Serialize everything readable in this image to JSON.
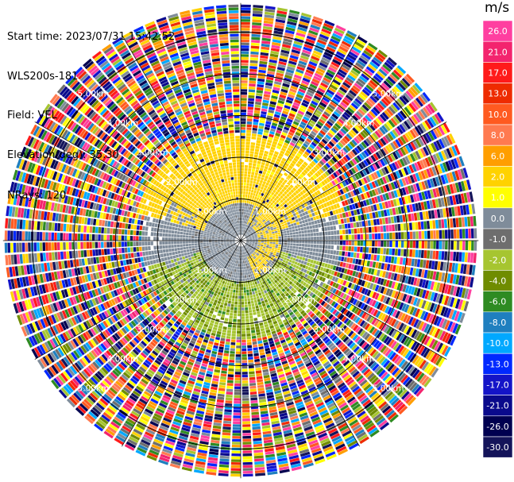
{
  "header": {
    "start_time": "Start time: 2023/07/31 15:42:52",
    "instrument": "WLS200s-181",
    "field": "Field: VEL",
    "elevation": "Elevation(deg): 35.30",
    "nrays": "NRays: 120"
  },
  "colorbar": {
    "unit": "m/s",
    "ticks": [
      "26.0",
      "21.0",
      "17.0",
      "13.0",
      "10.0",
      "8.0",
      "6.0",
      "2.0",
      "1.0",
      "0.0",
      "-1.0",
      "-2.0",
      "-4.0",
      "-6.0",
      "-8.0",
      "-10.0",
      "-13.0",
      "-17.0",
      "-21.0",
      "-26.0",
      "-30.0"
    ],
    "colors": [
      "#ff3fa0",
      "#f3246e",
      "#ff1a1a",
      "#ee2b00",
      "#ff5a20",
      "#ff7a50",
      "#ff9e00",
      "#ffd200",
      "#ffff00",
      "#7f8c9a",
      "#6e6e6e",
      "#a6c530",
      "#6f8c00",
      "#2e8b22",
      "#1f7fbf",
      "#00a8ff",
      "#0028ff",
      "#1414c8",
      "#0a0a8c",
      "#000050",
      "#14145a"
    ]
  },
  "chart_data": {
    "type": "heatmap",
    "projection": "polar PPI",
    "field": "VEL",
    "units": "m/s",
    "n_rays": 120,
    "elevation_deg": 35.3,
    "range_rings_km": [
      1,
      2,
      3,
      4,
      5
    ],
    "ring_labels": [
      "1.00km",
      "2.00km",
      "3.00km",
      "4.00km",
      "5.00km"
    ],
    "azimuth_lines_deg": [
      0,
      30,
      60,
      90,
      120,
      150,
      180,
      210,
      240,
      270,
      300,
      330
    ],
    "max_range_km": 5.7,
    "colorbar_range": [
      -30,
      26
    ],
    "regions": [
      {
        "description": "near-zero velocity (grey) core",
        "range_km": [
          0,
          1.3
        ],
        "value": 0.0
      },
      {
        "description": "positive velocity (yellow) north sector",
        "range_km": [
          0.5,
          2.6
        ],
        "azimuth_deg": [
          285,
          75
        ],
        "value": 2.0
      },
      {
        "description": "negative velocity (green) south sector",
        "range_km": [
          0.5,
          2.4
        ],
        "azimuth_deg": [
          105,
          255
        ],
        "value": -2.0
      },
      {
        "description": "noise (random velocities)",
        "range_km": [
          2.4,
          5.7
        ],
        "value": null
      }
    ]
  }
}
